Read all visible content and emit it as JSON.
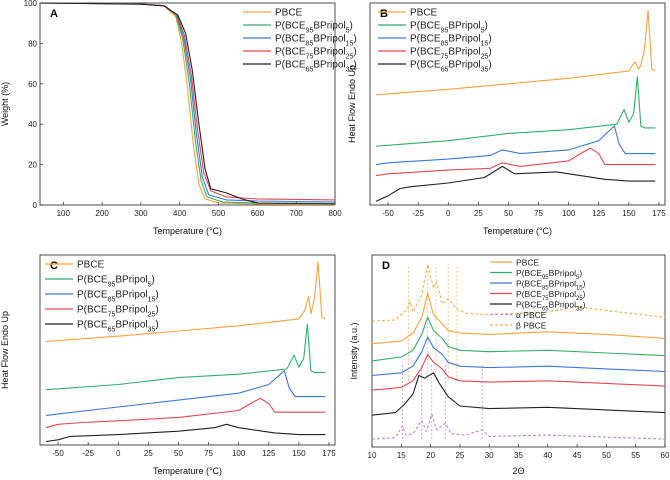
{
  "colors": {
    "PBCE": "#f5a23c",
    "BP5": "#2fb06a",
    "BP15": "#3d77d6",
    "BP25": "#e5484f",
    "BP35": "#222222",
    "alpha": "#b58ae0",
    "beta": "#f0b050"
  },
  "chart_data": [
    {
      "type": "line",
      "panel": "A",
      "title": "",
      "xlabel": "Temperature (°C)",
      "ylabel": "Weight (%)",
      "xlim": [
        40,
        800
      ],
      "ylim": [
        0,
        100
      ],
      "xticks": [
        "100",
        "200",
        "300",
        "400",
        "500",
        "600",
        "700",
        "800"
      ],
      "yticks": [
        "0",
        "20",
        "40",
        "60",
        "80",
        "100"
      ],
      "legend": [
        "PBCE",
        "P(BCE95BPripol5)",
        "P(BCE85BPripol15)",
        "P(BCE75BPripol25)",
        "P(BCE65BPripol35)"
      ],
      "series": [
        {
          "name": "PBCE",
          "key": "PBCE",
          "x": [
            40,
            300,
            360,
            390,
            405,
            420,
            435,
            450,
            465,
            500,
            600,
            800
          ],
          "y": [
            100,
            99.5,
            98.5,
            93,
            80,
            58,
            30,
            10,
            3,
            1,
            0.5,
            0.2
          ]
        },
        {
          "name": "P(BCE95BPripol5)",
          "key": "BP5",
          "x": [
            40,
            300,
            360,
            390,
            408,
            425,
            440,
            455,
            470,
            510,
            600,
            800
          ],
          "y": [
            100,
            99.5,
            98.6,
            94,
            82,
            60,
            32,
            12,
            4,
            1.5,
            1,
            0.8
          ]
        },
        {
          "name": "P(BCE85BPripol15)",
          "key": "BP15",
          "x": [
            40,
            300,
            360,
            392,
            410,
            428,
            443,
            458,
            475,
            520,
            600,
            800
          ],
          "y": [
            100,
            99.5,
            98.7,
            94,
            83,
            62,
            35,
            14,
            5,
            2.5,
            2,
            1.5
          ]
        },
        {
          "name": "P(BCE75BPripol25)",
          "key": "BP25",
          "x": [
            40,
            300,
            360,
            393,
            412,
            430,
            446,
            462,
            480,
            520,
            600,
            800
          ],
          "y": [
            100,
            99.5,
            98.7,
            94,
            84,
            64,
            37,
            16,
            7,
            4,
            3,
            2.5
          ]
        },
        {
          "name": "P(BCE65BPripol35)",
          "key": "BP35",
          "x": [
            40,
            300,
            360,
            395,
            415,
            432,
            448,
            465,
            480,
            520,
            560,
            600,
            800
          ],
          "y": [
            100,
            99.4,
            98.5,
            94,
            85,
            67,
            42,
            18,
            8,
            6,
            3,
            1,
            0.5
          ]
        }
      ]
    },
    {
      "type": "line",
      "panel": "B",
      "xlabel": "Temperature (°C)",
      "ylabel": "Heat Flow Endo Up",
      "xlim": [
        -65,
        180
      ],
      "xticks": [
        "-50",
        "-25",
        "0",
        "25",
        "50",
        "75",
        "100",
        "125",
        "150",
        "175"
      ],
      "legend": [
        "PBCE",
        "P(BCE95BPripol5)",
        "P(BCE85BPripol15)",
        "P(BCE75BPripol25)",
        "P(BCE65BPripol35)"
      ],
      "series": [
        {
          "name": "PBCE",
          "key": "PBCE",
          "x": [
            -60,
            0,
            50,
            100,
            150,
            155,
            158,
            160,
            163,
            166,
            169,
            172
          ],
          "y": [
            6.0,
            6.3,
            6.6,
            6.9,
            7.3,
            7.8,
            7.4,
            7.6,
            8.5,
            10.6,
            7.4,
            7.3
          ]
        },
        {
          "name": "P(BCE95BPripol5)",
          "key": "BP5",
          "x": [
            -60,
            0,
            50,
            100,
            140,
            146,
            150,
            154,
            157,
            160,
            163,
            172
          ],
          "y": [
            3.2,
            3.5,
            3.9,
            4.1,
            4.4,
            5.2,
            4.5,
            5.0,
            7.0,
            4.3,
            4.2,
            4.2
          ]
        },
        {
          "name": "P(BCE85BPripol15)",
          "key": "BP15",
          "x": [
            -60,
            -50,
            0,
            35,
            45,
            60,
            100,
            125,
            133,
            138,
            142,
            147,
            172
          ],
          "y": [
            2.2,
            2.3,
            2.5,
            2.7,
            3.0,
            2.8,
            3.0,
            3.5,
            4.0,
            4.3,
            3.3,
            2.8,
            2.8
          ]
        },
        {
          "name": "P(BCE75BPripol25)",
          "key": "BP25",
          "x": [
            -60,
            -50,
            0,
            35,
            45,
            60,
            100,
            110,
            118,
            125,
            130,
            172
          ],
          "y": [
            1.6,
            1.7,
            1.9,
            2.0,
            2.3,
            2.1,
            2.4,
            2.8,
            3.1,
            2.8,
            2.2,
            2.2
          ]
        },
        {
          "name": "P(BCE65BPripol35)",
          "key": "BP35",
          "x": [
            -60,
            -50,
            -40,
            -30,
            0,
            30,
            40,
            45,
            55,
            90,
            130,
            150,
            172
          ],
          "y": [
            0.2,
            0.5,
            0.9,
            1.0,
            1.2,
            1.5,
            1.9,
            2.1,
            1.7,
            1.8,
            1.4,
            1.3,
            1.3
          ]
        }
      ]
    },
    {
      "type": "line",
      "panel": "C",
      "xlabel": "Temperature (°C)",
      "ylabel": "Heat Flow Endo Up",
      "xlim": [
        -65,
        180
      ],
      "xticks": [
        "-50",
        "-25",
        "0",
        "25",
        "50",
        "75",
        "100",
        "125",
        "150",
        "175"
      ],
      "legend": [
        "PBCE",
        "P(BCE95BPripol5)",
        "P(BCE85BPripol15)",
        "P(BCE75BPripol25)",
        "P(BCE65BPripol35)"
      ],
      "series": [
        {
          "name": "PBCE",
          "key": "PBCE",
          "x": [
            -60,
            0,
            50,
            100,
            150,
            155,
            158,
            160,
            163,
            166,
            169,
            172
          ],
          "y": [
            6.0,
            6.3,
            6.6,
            6.9,
            7.3,
            7.8,
            8.6,
            7.6,
            8.5,
            10.6,
            7.4,
            7.3
          ]
        },
        {
          "name": "P(BCE95BPripol5)",
          "key": "BP5",
          "x": [
            -60,
            0,
            50,
            100,
            140,
            146,
            150,
            154,
            157,
            160,
            163,
            172
          ],
          "y": [
            3.2,
            3.5,
            3.9,
            4.1,
            4.4,
            5.2,
            4.5,
            5.0,
            7.0,
            4.3,
            4.2,
            4.2
          ]
        },
        {
          "name": "P(BCE85BPripol15)",
          "key": "BP15",
          "x": [
            -60,
            -50,
            0,
            50,
            100,
            125,
            133,
            138,
            142,
            147,
            172
          ],
          "y": [
            1.7,
            1.8,
            2.2,
            2.6,
            3.0,
            3.5,
            4.0,
            4.3,
            3.3,
            2.8,
            2.8
          ]
        },
        {
          "name": "P(BCE75BPripol25)",
          "key": "BP25",
          "x": [
            -60,
            -50,
            -30,
            0,
            50,
            100,
            110,
            118,
            125,
            130,
            172
          ],
          "y": [
            1.0,
            1.2,
            1.3,
            1.4,
            1.6,
            2.0,
            2.4,
            2.7,
            2.4,
            1.9,
            1.9
          ]
        },
        {
          "name": "P(BCE65BPripol35)",
          "key": "BP35",
          "x": [
            -60,
            -50,
            -40,
            0,
            50,
            80,
            90,
            100,
            130,
            150,
            172
          ],
          "y": [
            0.2,
            0.3,
            0.5,
            0.6,
            0.8,
            1.0,
            1.2,
            1.0,
            0.7,
            0.6,
            0.6
          ]
        }
      ]
    },
    {
      "type": "line",
      "panel": "D",
      "xlabel": "2Θ",
      "ylabel": "Intensity (a.u.)",
      "xlim": [
        10,
        60
      ],
      "xticks": [
        "10",
        "15",
        "20",
        "25",
        "30",
        "35",
        "40",
        "45",
        "50",
        "55",
        "60"
      ],
      "legend": [
        "PBCE",
        "P(BCE95BPripol5)",
        "P(BCE85BPripol15)",
        "P(BCE75BPripol25)",
        "P(BCE65BPripol35)",
        "α PBCE",
        "β PBCE"
      ],
      "alpha_peaks_2theta": [
        15.2,
        18.5,
        20.2,
        22.5,
        28.8
      ],
      "beta_peaks_2theta": [
        16.2,
        19.5,
        20.9,
        23.0,
        24.5
      ],
      "series": [
        {
          "name": "β PBCE",
          "key": "beta",
          "x": [
            10,
            14,
            16,
            16.5,
            17,
            18.5,
            19.5,
            20.5,
            21,
            22,
            23,
            24.5,
            26,
            30,
            40,
            45,
            50,
            60
          ],
          "y": [
            9.5,
            9.6,
            10.4,
            11.0,
            10.2,
            11.5,
            13.8,
            12.0,
            12.5,
            10.8,
            11.2,
            10.4,
            10.1,
            10.0,
            10.2,
            10.6,
            10.3,
            9.8
          ]
        },
        {
          "name": "PBCE",
          "key": "PBCE",
          "x": [
            10,
            15,
            17,
            18.5,
            19.5,
            20.5,
            22,
            23,
            25,
            30,
            40,
            50,
            60
          ],
          "y": [
            7.8,
            8.0,
            8.6,
            9.8,
            11.6,
            10.0,
            9.3,
            8.8,
            8.6,
            8.5,
            8.7,
            8.5,
            8.2
          ]
        },
        {
          "name": "P(BCE95BPripol5)",
          "key": "BP5",
          "x": [
            10,
            15,
            17,
            18.5,
            19.5,
            20.5,
            22,
            23,
            25,
            30,
            40,
            50,
            60
          ],
          "y": [
            6.5,
            6.8,
            7.3,
            8.5,
            9.8,
            8.8,
            8.2,
            7.6,
            7.3,
            7.2,
            7.3,
            7.1,
            6.9
          ]
        },
        {
          "name": "P(BCE85BPripol15)",
          "key": "BP15",
          "x": [
            10,
            15,
            17,
            18.5,
            19.5,
            20.5,
            22,
            23,
            25,
            30,
            40,
            50,
            60
          ],
          "y": [
            5.4,
            5.6,
            6.1,
            7.2,
            8.3,
            7.5,
            7.0,
            6.4,
            6.1,
            6.0,
            6.1,
            5.9,
            5.7
          ]
        },
        {
          "name": "P(BCE75BPripol25)",
          "key": "BP25",
          "x": [
            10,
            15,
            17,
            18.5,
            19.5,
            20.5,
            22,
            23,
            25,
            30,
            40,
            50,
            60
          ],
          "y": [
            4.3,
            4.5,
            5.0,
            6.0,
            7.0,
            6.4,
            5.9,
            5.3,
            5.0,
            4.9,
            5.0,
            4.8,
            4.6
          ]
        },
        {
          "name": "P(BCE65BPripol35)",
          "key": "BP35",
          "x": [
            10,
            14,
            15.5,
            17,
            18,
            19,
            20.5,
            21.5,
            23,
            25,
            30,
            40,
            50,
            60
          ],
          "y": [
            2.4,
            2.6,
            3.2,
            4.0,
            5.4,
            5.2,
            5.6,
            4.8,
            3.8,
            3.1,
            2.9,
            3.0,
            2.8,
            2.6
          ]
        },
        {
          "name": "α PBCE",
          "key": "alpha",
          "x": [
            10,
            14,
            15.2,
            15.8,
            17,
            18.5,
            19.3,
            20.2,
            21,
            22.5,
            23.5,
            26,
            28.8,
            30,
            40,
            60
          ],
          "y": [
            0.6,
            0.7,
            1.6,
            0.9,
            1.0,
            2.0,
            1.2,
            2.5,
            1.3,
            1.8,
            1.0,
            0.9,
            1.3,
            0.8,
            0.9,
            0.6
          ]
        }
      ]
    }
  ]
}
